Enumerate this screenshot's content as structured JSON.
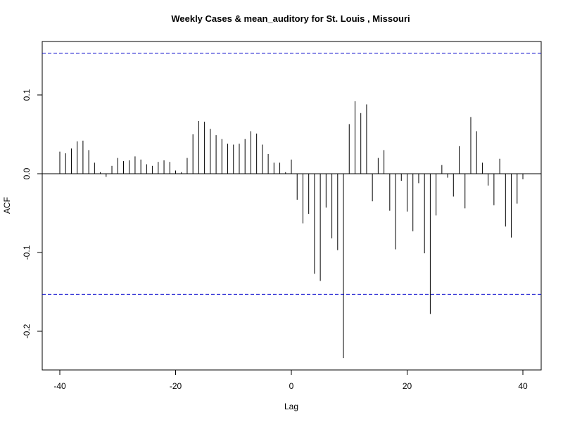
{
  "chart_data": {
    "type": "bar",
    "title": "Weekly Cases & mean_auditory for St. Louis , Missouri",
    "xlabel": "Lag",
    "ylabel": "ACF",
    "xlim": [
      -40,
      40
    ],
    "ylim": [
      -0.25,
      0.17
    ],
    "xticks": [
      -40,
      -20,
      0,
      20,
      40
    ],
    "xtick_labels": [
      "-40",
      "-20",
      "0",
      "20",
      "40"
    ],
    "yticks": [
      -0.2,
      -0.1,
      0.0,
      0.1
    ],
    "ytick_labels": [
      "-0.2",
      "-0.1",
      "0.0",
      "0.1"
    ],
    "confidence_bounds": [
      0.153,
      -0.153
    ],
    "bound_color": "#0000cc",
    "bar_color": "#000000",
    "grid": false,
    "x": [
      -40,
      -39,
      -38,
      -37,
      -36,
      -35,
      -34,
      -33,
      -32,
      -31,
      -30,
      -29,
      -28,
      -27,
      -26,
      -25,
      -24,
      -23,
      -22,
      -21,
      -20,
      -19,
      -18,
      -17,
      -16,
      -15,
      -14,
      -13,
      -12,
      -11,
      -10,
      -9,
      -8,
      -7,
      -6,
      -5,
      -4,
      -3,
      -2,
      -1,
      0,
      1,
      2,
      3,
      4,
      5,
      6,
      7,
      8,
      9,
      10,
      11,
      12,
      13,
      14,
      15,
      16,
      17,
      18,
      19,
      20,
      21,
      22,
      23,
      24,
      25,
      26,
      27,
      28,
      29,
      30,
      31,
      32,
      33,
      34,
      35,
      36,
      37,
      38,
      39,
      40
    ],
    "values": [
      0.028,
      0.026,
      0.032,
      0.041,
      0.042,
      0.03,
      0.014,
      0.002,
      -0.004,
      0.01,
      0.02,
      0.016,
      0.017,
      0.022,
      0.018,
      0.012,
      0.01,
      0.015,
      0.017,
      0.015,
      0.004,
      0.002,
      0.02,
      0.05,
      0.067,
      0.066,
      0.057,
      0.049,
      0.044,
      0.038,
      0.037,
      0.038,
      0.044,
      0.054,
      0.051,
      0.037,
      0.025,
      0.014,
      0.014,
      0.002,
      0.018,
      -0.033,
      -0.063,
      -0.051,
      -0.127,
      -0.136,
      -0.043,
      -0.082,
      -0.097,
      -0.234,
      0.063,
      0.092,
      0.077,
      0.088,
      -0.035,
      0.02,
      0.03,
      -0.047,
      -0.096,
      -0.009,
      -0.048,
      -0.073,
      -0.012,
      -0.101,
      -0.178,
      -0.053,
      0.011,
      -0.005,
      -0.029,
      0.035,
      -0.044,
      0.072,
      0.054,
      0.014,
      -0.015,
      -0.04,
      0.019,
      -0.067,
      -0.081,
      -0.038,
      -0.007
    ]
  }
}
